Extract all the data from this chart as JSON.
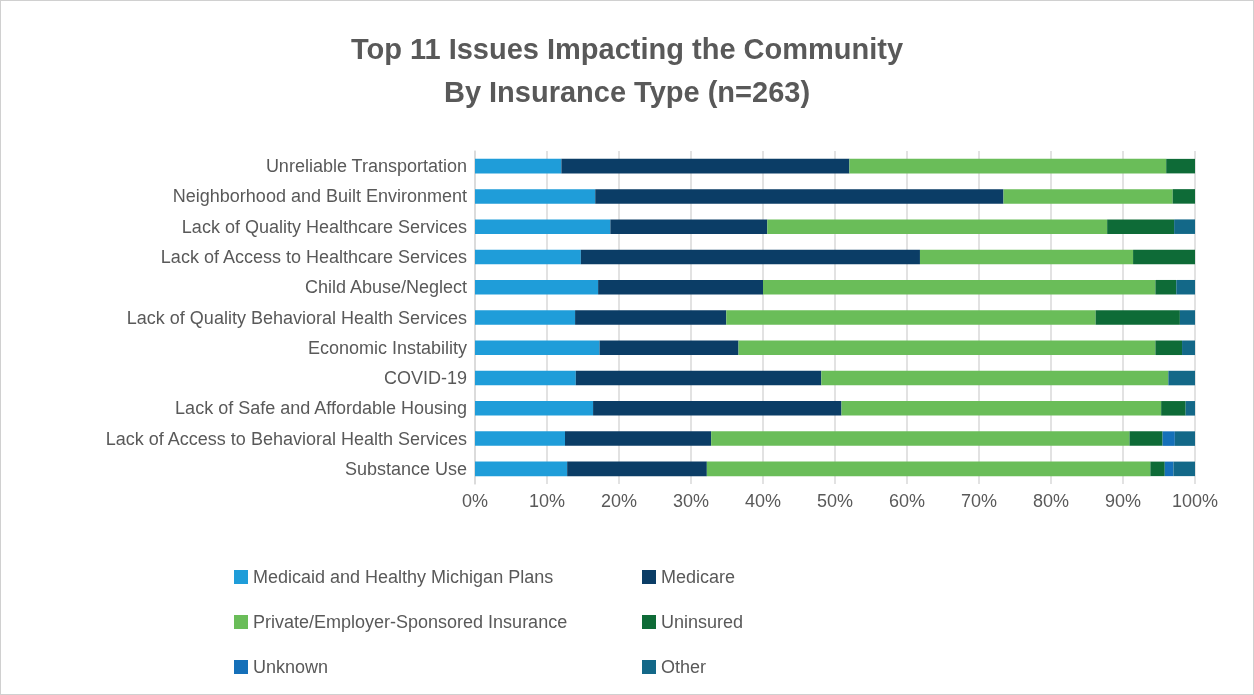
{
  "chart_data": {
    "type": "bar",
    "orientation": "horizontal",
    "stacked": true,
    "title": "Top 11 Issues Impacting the Community",
    "subtitle": "By Insurance Type (n=263)",
    "categories": [
      "Unreliable Transportation",
      "Neighborhood and Built Environment",
      "Lack of Quality Healthcare Services",
      "Lack of Access to Healthcare Services",
      "Child Abuse/Neglect",
      "Lack of Quality Behavioral Health Services",
      "Economic Instability",
      "COVID-19",
      "Lack of Safe and Affordable Housing",
      "Lack of Access to Behavioral Health Services",
      "Substance Use"
    ],
    "series": [
      {
        "name": "Medicaid and Healthy Michigan Plans",
        "color": "#1f9dd9",
        "values": [
          12,
          16.7,
          18.8,
          14.7,
          17.1,
          13.9,
          17.3,
          14.0,
          16.4,
          12.5,
          12.8
        ]
      },
      {
        "name": "Medicare",
        "color": "#0b3d66",
        "values": [
          40,
          56.7,
          21.8,
          47.1,
          22.9,
          21.0,
          19.3,
          34.1,
          34.5,
          20.3,
          19.4
        ]
      },
      {
        "name": "Private/Employer-Sponsored Insurance",
        "color": "#6abd59",
        "values": [
          44,
          23.5,
          47.2,
          29.6,
          54.5,
          51.3,
          57.9,
          48.2,
          44.4,
          58.1,
          61.6
        ]
      },
      {
        "name": "Uninsured",
        "color": "#0e6b37",
        "values": [
          4,
          3.1,
          9.3,
          8.6,
          2.9,
          11.7,
          3.7,
          0,
          3.4,
          4.6,
          2.0
        ]
      },
      {
        "name": "Unknown",
        "color": "#1570b9",
        "values": [
          0,
          0,
          0,
          0,
          0,
          0,
          0,
          0,
          0,
          1.7,
          1.2
        ]
      },
      {
        "name": "Other",
        "color": "#136888",
        "values": [
          0,
          0,
          2.9,
          0,
          2.6,
          2.1,
          1.8,
          3.7,
          1.3,
          2.8,
          3.0
        ]
      }
    ],
    "xlim": [
      0,
      100
    ],
    "xticks": [
      {
        "value": 0,
        "label": "0%"
      },
      {
        "value": 10,
        "label": "10%"
      },
      {
        "value": 20,
        "label": "20%"
      },
      {
        "value": 30,
        "label": "30%"
      },
      {
        "value": 40,
        "label": "40%"
      },
      {
        "value": 50,
        "label": "50%"
      },
      {
        "value": 60,
        "label": "60%"
      },
      {
        "value": 70,
        "label": "70%"
      },
      {
        "value": 80,
        "label": "80%"
      },
      {
        "value": 90,
        "label": "90%"
      },
      {
        "value": 100,
        "label": "100%"
      }
    ],
    "grid": "x",
    "legend": "bottom"
  }
}
